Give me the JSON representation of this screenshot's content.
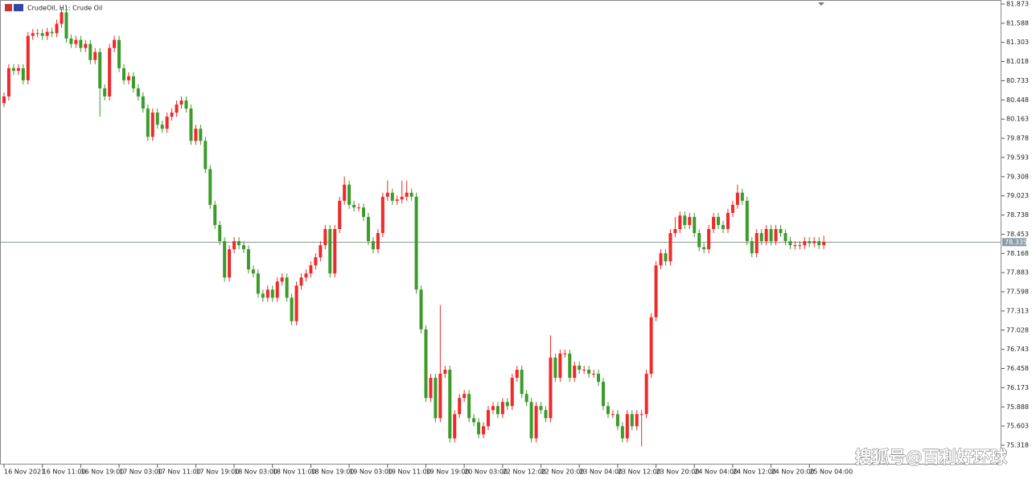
{
  "chart_data": {
    "type": "candlestick",
    "title": "CrudeOil, H1:  Crude Oil",
    "watermark": "搜狐号@百利好环球",
    "up_color": "#ee2a2a",
    "down_color": "#3c9b2a",
    "grid": false,
    "current_price": 78.335,
    "ylim": [
      75.318,
      81.873
    ],
    "yticks": [
      75.318,
      75.603,
      75.888,
      76.173,
      76.458,
      76.743,
      77.028,
      77.313,
      77.598,
      77.883,
      78.168,
      78.453,
      78.738,
      79.023,
      79.308,
      79.593,
      79.878,
      80.163,
      80.448,
      80.733,
      81.018,
      81.303,
      81.588,
      81.873
    ],
    "categories": [
      "16 Nov 2021",
      null,
      null,
      null,
      null,
      null,
      null,
      null,
      "16 Nov 11:00",
      null,
      null,
      null,
      null,
      null,
      null,
      null,
      "16 Nov 19:00",
      null,
      null,
      null,
      null,
      null,
      null,
      null,
      "17 Nov 03:00",
      null,
      null,
      null,
      null,
      null,
      null,
      null,
      "17 Nov 11:00",
      null,
      null,
      null,
      null,
      null,
      null,
      null,
      "17 Nov 19:00",
      null,
      null,
      null,
      null,
      null,
      null,
      null,
      "18 Nov 03:00",
      null,
      null,
      null,
      null,
      null,
      null,
      null,
      "18 Nov 11:00",
      null,
      null,
      null,
      null,
      null,
      null,
      null,
      "18 Nov 19:00",
      null,
      null,
      null,
      null,
      null,
      null,
      null,
      "19 Nov 03:00",
      null,
      null,
      null,
      null,
      null,
      null,
      null,
      "19 Nov 11:00",
      null,
      null,
      null,
      null,
      null,
      null,
      null,
      "19 Nov 19:00",
      null,
      null,
      null,
      null,
      null,
      null,
      null,
      "20 Nov 03:00",
      null,
      null,
      null,
      null,
      null,
      null,
      null,
      "22 Nov 12:00",
      null,
      null,
      null,
      null,
      null,
      null,
      null,
      "22 Nov 20:00",
      null,
      null,
      null,
      null,
      null,
      null,
      null,
      "23 Nov 04:00",
      null,
      null,
      null,
      null,
      null,
      null,
      null,
      "23 Nov 12:00",
      null,
      null,
      null,
      null,
      null,
      null,
      null,
      "23 Nov 20:00",
      null,
      null,
      null,
      null,
      null,
      null,
      null,
      "24 Nov 04:00",
      null,
      null,
      null,
      null,
      null,
      null,
      null,
      "24 Nov 12:00",
      null,
      null,
      null,
      null,
      null,
      null,
      null,
      "24 Nov 20:00",
      null,
      null,
      null,
      null,
      null,
      null,
      null,
      "25 Nov 04:00",
      null,
      null,
      null
    ],
    "open": [
      80.4,
      80.5,
      80.92,
      80.88,
      80.92,
      80.74,
      81.4,
      81.44,
      81.44,
      81.4,
      81.46,
      81.44,
      81.58,
      81.75,
      81.36,
      81.28,
      81.34,
      81.22,
      81.28,
      81.04,
      81.16,
      80.62,
      80.5,
      81.22,
      81.34,
      80.92,
      80.74,
      80.8,
      80.62,
      80.5,
      80.32,
      79.9,
      80.26,
      80.08,
      80.02,
      80.2,
      80.26,
      80.38,
      80.44,
      80.32,
      79.84,
      80.02,
      79.84,
      79.42,
      78.89,
      78.59,
      78.35,
      77.81,
      78.23,
      78.35,
      78.29,
      78.23,
      77.93,
      77.87,
      77.57,
      77.51,
      77.63,
      77.51,
      77.75,
      77.81,
      77.51,
      77.16,
      77.69,
      77.81,
      77.87,
      77.99,
      78.11,
      78.29,
      78.53,
      77.87,
      78.53,
      78.95,
      79.19,
      78.89,
      78.85,
      78.85,
      78.71,
      78.35,
      78.23,
      78.47,
      79.01,
      79.07,
      78.95,
      78.97,
      79.01,
      79.07,
      79.01,
      77.63,
      77.04,
      76.02,
      76.32,
      75.72,
      76.38,
      76.44,
      75.42,
      75.78,
      76.02,
      76.08,
      75.72,
      75.66,
      75.48,
      75.6,
      75.84,
      75.9,
      75.78,
      75.96,
      75.9,
      76.32,
      76.44,
      76.08,
      75.96,
      75.42,
      75.9,
      75.84,
      75.72,
      76.62,
      76.32,
      76.68,
      76.68,
      76.32,
      76.5,
      76.44,
      76.44,
      76.38,
      76.38,
      76.26,
      75.9,
      75.78,
      75.78,
      75.6,
      75.42,
      75.78,
      75.6,
      75.78,
      75.78,
      76.38,
      77.22,
      77.99,
      78.17,
      78.05,
      78.47,
      78.53,
      78.73,
      78.59,
      78.71,
      78.47,
      78.26,
      78.23,
      78.53,
      78.71,
      78.59,
      78.53,
      78.77,
      78.89,
      79.07,
      78.95,
      78.35,
      78.17,
      78.47,
      78.35,
      78.53,
      78.35,
      78.53,
      78.47,
      78.35,
      78.29,
      78.29,
      78.29,
      78.35,
      78.32,
      78.35,
      78.29
    ],
    "high": [
      80.56,
      80.98,
      80.98,
      80.98,
      80.98,
      81.46,
      81.5,
      81.5,
      81.5,
      81.52,
      81.52,
      81.64,
      81.81,
      81.81,
      81.42,
      81.4,
      81.4,
      81.34,
      81.34,
      81.22,
      81.22,
      80.68,
      81.28,
      81.4,
      81.4,
      80.98,
      80.86,
      80.86,
      80.68,
      80.56,
      80.38,
      80.32,
      80.32,
      80.14,
      80.26,
      80.32,
      80.44,
      80.5,
      80.5,
      80.38,
      80.08,
      80.08,
      79.9,
      79.48,
      78.95,
      78.65,
      78.41,
      78.29,
      78.41,
      78.41,
      78.35,
      78.29,
      77.99,
      77.93,
      77.63,
      77.69,
      77.69,
      77.81,
      77.87,
      77.87,
      77.57,
      77.75,
      77.87,
      77.93,
      78.05,
      78.17,
      78.35,
      78.59,
      78.59,
      78.59,
      79.01,
      79.31,
      79.25,
      78.95,
      78.91,
      78.91,
      78.77,
      78.41,
      78.53,
      79.07,
      79.25,
      79.13,
      79.03,
      79.25,
      79.25,
      79.13,
      79.07,
      77.69,
      77.1,
      76.38,
      76.38,
      77.4,
      76.5,
      76.5,
      75.84,
      76.08,
      76.14,
      76.14,
      75.78,
      75.72,
      75.66,
      75.9,
      75.96,
      75.96,
      76.02,
      76.02,
      76.38,
      76.5,
      76.5,
      76.14,
      76.02,
      75.96,
      75.96,
      75.9,
      76.95,
      76.68,
      76.74,
      76.74,
      76.74,
      76.56,
      76.56,
      76.5,
      76.5,
      76.44,
      76.44,
      76.32,
      75.96,
      75.84,
      75.84,
      75.66,
      75.84,
      75.84,
      75.84,
      75.84,
      76.44,
      77.28,
      78.05,
      78.23,
      78.23,
      78.53,
      78.71,
      78.79,
      78.79,
      78.77,
      78.77,
      78.53,
      78.32,
      78.59,
      78.77,
      78.77,
      78.65,
      78.83,
      78.95,
      79.19,
      79.13,
      79.01,
      78.41,
      78.53,
      78.53,
      78.59,
      78.59,
      78.59,
      78.59,
      78.53,
      78.41,
      78.35,
      78.35,
      78.41,
      78.41,
      78.41,
      78.41,
      78.43
    ],
    "low": [
      80.34,
      80.44,
      80.82,
      80.82,
      80.68,
      80.68,
      81.34,
      81.38,
      81.34,
      81.34,
      81.38,
      81.38,
      81.52,
      81.3,
      81.22,
      81.22,
      81.16,
      81.16,
      80.98,
      80.98,
      80.2,
      80.44,
      80.44,
      81.16,
      80.86,
      80.68,
      80.68,
      80.56,
      80.44,
      80.26,
      79.84,
      79.84,
      80.02,
      79.96,
      79.96,
      80.14,
      80.2,
      80.32,
      80.26,
      79.78,
      79.78,
      79.78,
      79.36,
      78.83,
      78.53,
      78.29,
      77.75,
      77.75,
      78.17,
      78.23,
      78.17,
      77.87,
      77.81,
      77.51,
      77.45,
      77.45,
      77.45,
      77.45,
      77.69,
      77.45,
      77.1,
      77.1,
      77.63,
      77.75,
      77.81,
      77.93,
      78.05,
      78.23,
      77.81,
      77.81,
      78.47,
      78.89,
      78.83,
      78.79,
      78.79,
      78.65,
      78.29,
      78.17,
      78.17,
      78.41,
      78.95,
      78.89,
      78.89,
      78.91,
      78.95,
      78.95,
      77.57,
      76.98,
      75.96,
      75.96,
      75.66,
      75.66,
      76.32,
      75.36,
      75.36,
      75.72,
      75.96,
      75.66,
      75.6,
      75.42,
      75.42,
      75.54,
      75.78,
      75.72,
      75.72,
      75.84,
      75.84,
      76.26,
      76.02,
      75.9,
      75.36,
      75.36,
      75.78,
      75.66,
      75.66,
      76.26,
      76.26,
      76.62,
      76.26,
      76.26,
      76.38,
      76.38,
      76.32,
      76.32,
      76.2,
      75.84,
      75.72,
      75.72,
      75.54,
      75.36,
      75.36,
      75.54,
      75.54,
      75.3,
      75.72,
      76.32,
      77.16,
      77.93,
      77.99,
      77.99,
      78.41,
      78.47,
      78.53,
      78.53,
      78.41,
      78.2,
      78.17,
      78.17,
      78.47,
      78.53,
      78.47,
      78.47,
      78.71,
      78.83,
      78.89,
      78.29,
      78.11,
      78.11,
      78.29,
      78.29,
      78.29,
      78.29,
      78.41,
      78.29,
      78.23,
      78.23,
      78.23,
      78.23,
      78.26,
      78.26,
      78.23,
      78.23
    ],
    "close": [
      80.5,
      80.92,
      80.88,
      80.92,
      80.74,
      81.4,
      81.44,
      81.44,
      81.4,
      81.46,
      81.44,
      81.58,
      81.75,
      81.36,
      81.28,
      81.34,
      81.22,
      81.28,
      81.04,
      81.16,
      80.62,
      80.5,
      81.22,
      81.34,
      80.92,
      80.74,
      80.8,
      80.62,
      80.5,
      80.32,
      79.9,
      80.26,
      80.08,
      80.02,
      80.2,
      80.26,
      80.38,
      80.44,
      80.32,
      79.84,
      80.02,
      79.84,
      79.42,
      78.89,
      78.59,
      78.35,
      77.81,
      78.23,
      78.35,
      78.29,
      78.23,
      77.93,
      77.87,
      77.57,
      77.51,
      77.63,
      77.51,
      77.75,
      77.81,
      77.51,
      77.16,
      77.69,
      77.81,
      77.87,
      77.99,
      78.11,
      78.29,
      78.53,
      77.87,
      78.53,
      78.95,
      79.19,
      78.89,
      78.85,
      78.85,
      78.71,
      78.35,
      78.23,
      78.47,
      79.01,
      79.07,
      78.95,
      78.97,
      79.01,
      79.07,
      79.01,
      77.63,
      77.04,
      76.02,
      76.32,
      75.72,
      76.38,
      76.44,
      75.42,
      75.78,
      76.02,
      76.08,
      75.72,
      75.66,
      75.48,
      75.6,
      75.84,
      75.9,
      75.78,
      75.96,
      75.9,
      76.32,
      76.44,
      76.08,
      75.96,
      75.42,
      75.9,
      75.84,
      75.72,
      76.62,
      76.32,
      76.68,
      76.68,
      76.32,
      76.5,
      76.44,
      76.44,
      76.38,
      76.38,
      76.26,
      75.9,
      75.78,
      75.78,
      75.6,
      75.42,
      75.78,
      75.6,
      75.78,
      75.78,
      76.38,
      77.22,
      77.99,
      78.17,
      78.05,
      78.47,
      78.53,
      78.73,
      78.59,
      78.71,
      78.47,
      78.26,
      78.23,
      78.53,
      78.71,
      78.59,
      78.53,
      78.77,
      78.89,
      79.07,
      78.95,
      78.35,
      78.17,
      78.47,
      78.35,
      78.53,
      78.35,
      78.53,
      78.47,
      78.35,
      78.29,
      78.29,
      78.29,
      78.35,
      78.32,
      78.35,
      78.29,
      78.34
    ]
  }
}
